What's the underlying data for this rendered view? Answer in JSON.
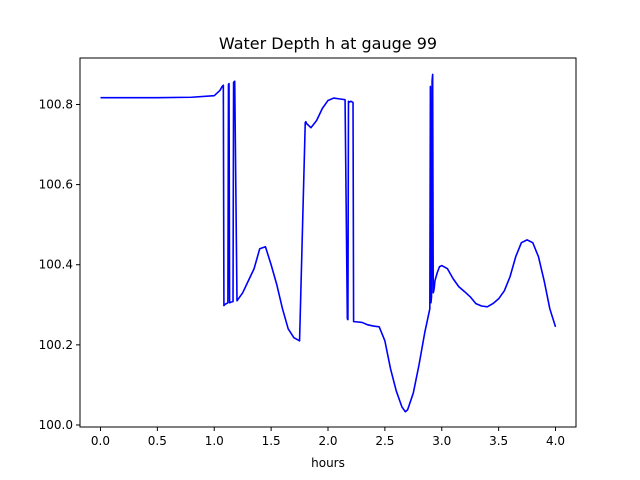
{
  "chart_data": {
    "type": "line",
    "title": "Water Depth h at gauge 99",
    "xlabel": "hours",
    "ylabel": "",
    "xlim": [
      -0.18,
      4.18
    ],
    "ylim": [
      99.995,
      100.916
    ],
    "xticks": [
      0.0,
      0.5,
      1.0,
      1.5,
      2.0,
      2.5,
      3.0,
      3.5,
      4.0
    ],
    "xtick_labels": [
      "0.0",
      "0.5",
      "1.0",
      "1.5",
      "2.0",
      "2.5",
      "3.0",
      "3.5",
      "4.0"
    ],
    "yticks": [
      100.0,
      100.2,
      100.4,
      100.6,
      100.8
    ],
    "ytick_labels": [
      "100.0",
      "100.2",
      "100.4",
      "100.6",
      "100.8"
    ],
    "grid": false,
    "legend": null,
    "series": [
      {
        "color": "#0000ff",
        "x": [
          0.0,
          0.5,
          0.8,
          1.0,
          1.05,
          1.07,
          1.08,
          1.085,
          1.09,
          1.1,
          1.12,
          1.125,
          1.13,
          1.135,
          1.15,
          1.165,
          1.17,
          1.175,
          1.18,
          1.2,
          1.205,
          1.21,
          1.25,
          1.3,
          1.35,
          1.4,
          1.45,
          1.5,
          1.55,
          1.6,
          1.65,
          1.7,
          1.75,
          1.8,
          1.805,
          1.81,
          1.85,
          1.9,
          1.95,
          2.0,
          2.05,
          2.1,
          2.15,
          2.17,
          2.175,
          2.18,
          2.19,
          2.2,
          2.22,
          2.225,
          2.23,
          2.3,
          2.35,
          2.4,
          2.45,
          2.5,
          2.55,
          2.6,
          2.65,
          2.68,
          2.7,
          2.75,
          2.8,
          2.85,
          2.88,
          2.895,
          2.9,
          2.905,
          2.91,
          2.915,
          2.92,
          2.925,
          2.93,
          2.935,
          2.94,
          2.96,
          2.98,
          3.0,
          3.05,
          3.1,
          3.15,
          3.2,
          3.25,
          3.3,
          3.35,
          3.4,
          3.45,
          3.5,
          3.55,
          3.6,
          3.65,
          3.7,
          3.75,
          3.8,
          3.85,
          3.9,
          3.95,
          4.0
        ],
        "y": [
          100.817,
          100.817,
          100.818,
          100.822,
          100.835,
          100.845,
          100.848,
          100.298,
          100.3,
          100.302,
          100.305,
          100.85,
          100.852,
          100.305,
          100.307,
          100.308,
          100.855,
          100.857,
          100.858,
          100.31,
          100.312,
          100.314,
          100.33,
          100.36,
          100.39,
          100.44,
          100.445,
          100.4,
          100.35,
          100.29,
          100.24,
          100.218,
          100.21,
          100.755,
          100.757,
          100.753,
          100.742,
          100.76,
          100.79,
          100.81,
          100.816,
          100.814,
          100.812,
          100.265,
          100.263,
          100.808,
          100.806,
          100.808,
          100.805,
          100.258,
          100.258,
          100.256,
          100.25,
          100.247,
          100.245,
          100.21,
          100.14,
          100.085,
          100.045,
          100.033,
          100.038,
          100.08,
          100.15,
          100.23,
          100.27,
          100.29,
          100.845,
          100.305,
          100.32,
          100.86,
          100.875,
          100.33,
          100.335,
          100.345,
          100.36,
          100.38,
          100.395,
          100.398,
          100.39,
          100.365,
          100.345,
          100.333,
          100.32,
          100.303,
          100.297,
          100.295,
          100.303,
          100.315,
          100.335,
          100.37,
          100.42,
          100.455,
          100.462,
          100.455,
          100.42,
          100.36,
          100.29,
          100.245
        ]
      }
    ]
  }
}
